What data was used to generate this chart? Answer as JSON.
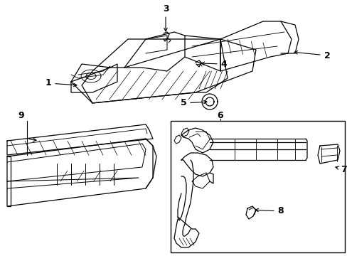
{
  "bg_color": "#ffffff",
  "line_color": "#000000",
  "lw": 0.9,
  "fig_width": 4.89,
  "fig_height": 3.6,
  "dpi": 100,
  "label_fontsize": 9
}
